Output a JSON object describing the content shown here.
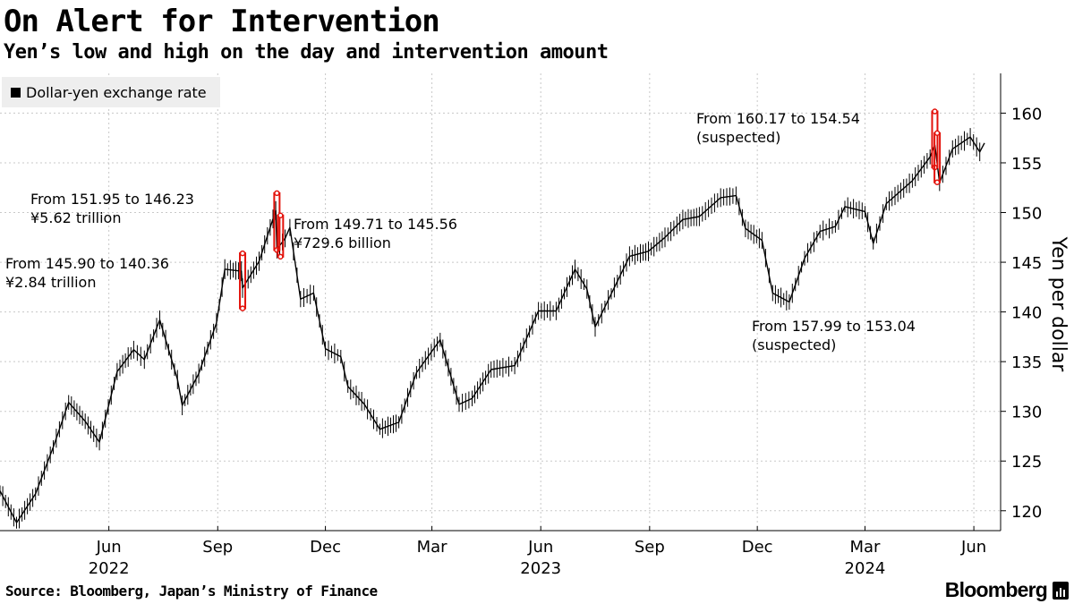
{
  "header": {
    "title": "On Alert for Intervention",
    "subtitle": "Yen’s low and high on the day and intervention amount"
  },
  "legend": {
    "label": "Dollar-yen exchange rate"
  },
  "footer": {
    "source": "Source: Bloomberg, Japan’s Ministry of Finance",
    "brand": "Bloomberg"
  },
  "colors": {
    "series": "#000000",
    "intervention": "#e3120b",
    "grid": "#c8c8c8"
  },
  "chart_data": {
    "type": "line",
    "title": "On Alert for Intervention",
    "subtitle": "Yen’s low and high on the day and intervention amount",
    "xlabel": "",
    "ylabel": "Yen per dollar",
    "ylim": [
      118,
      164
    ],
    "yticks": [
      120,
      125,
      130,
      135,
      140,
      145,
      150,
      155,
      160
    ],
    "xlim": [
      "2022-03-01",
      "2024-06-10"
    ],
    "xticks": [
      {
        "date": "2022-06-01",
        "label": "Jun",
        "year": "2022"
      },
      {
        "date": "2022-09-01",
        "label": "Sep",
        "year": ""
      },
      {
        "date": "2022-12-01",
        "label": "Dec",
        "year": ""
      },
      {
        "date": "2023-03-01",
        "label": "Mar",
        "year": ""
      },
      {
        "date": "2023-06-01",
        "label": "Jun",
        "year": "2023"
      },
      {
        "date": "2023-09-01",
        "label": "Sep",
        "year": ""
      },
      {
        "date": "2023-12-01",
        "label": "Dec",
        "year": ""
      },
      {
        "date": "2024-03-01",
        "label": "Mar",
        "year": "2024"
      },
      {
        "date": "2024-06-01",
        "label": "Jun",
        "year": ""
      }
    ],
    "series": [
      {
        "name": "Dollar-yen exchange rate",
        "points": [
          [
            "2022-03-01",
            122.0
          ],
          [
            "2022-03-15",
            118.8
          ],
          [
            "2022-03-31",
            121.7
          ],
          [
            "2022-04-15",
            126.4
          ],
          [
            "2022-04-28",
            130.9
          ],
          [
            "2022-05-12",
            129.0
          ],
          [
            "2022-05-24",
            126.9
          ],
          [
            "2022-06-08",
            134.0
          ],
          [
            "2022-06-22",
            136.2
          ],
          [
            "2022-07-01",
            135.2
          ],
          [
            "2022-07-14",
            139.2
          ],
          [
            "2022-07-29",
            133.2
          ],
          [
            "2022-08-02",
            130.6
          ],
          [
            "2022-08-16",
            133.8
          ],
          [
            "2022-08-31",
            138.9
          ],
          [
            "2022-09-07",
            144.3
          ],
          [
            "2022-09-21",
            144.1
          ],
          [
            "2022-09-22",
            142.4
          ],
          [
            "2022-10-06",
            145.1
          ],
          [
            "2022-10-20",
            150.2
          ],
          [
            "2022-10-21",
            146.3
          ],
          [
            "2022-10-28",
            147.4
          ],
          [
            "2022-11-01",
            148.5
          ],
          [
            "2022-11-10",
            141.3
          ],
          [
            "2022-11-21",
            141.9
          ],
          [
            "2022-12-01",
            136.3
          ],
          [
            "2022-12-14",
            135.5
          ],
          [
            "2022-12-20",
            132.5
          ],
          [
            "2023-01-03",
            130.7
          ],
          [
            "2023-01-16",
            128.2
          ],
          [
            "2023-02-01",
            128.9
          ],
          [
            "2023-02-16",
            133.9
          ],
          [
            "2023-03-08",
            137.2
          ],
          [
            "2023-03-24",
            130.7
          ],
          [
            "2023-04-04",
            131.3
          ],
          [
            "2023-04-20",
            134.2
          ],
          [
            "2023-05-10",
            134.6
          ],
          [
            "2023-05-30",
            140.1
          ],
          [
            "2023-06-14",
            140.1
          ],
          [
            "2023-06-30",
            144.3
          ],
          [
            "2023-07-10",
            142.3
          ],
          [
            "2023-07-17",
            138.5
          ],
          [
            "2023-07-28",
            141.2
          ],
          [
            "2023-08-15",
            145.6
          ],
          [
            "2023-08-31",
            146.1
          ],
          [
            "2023-09-14",
            147.5
          ],
          [
            "2023-09-29",
            149.3
          ],
          [
            "2023-10-13",
            149.6
          ],
          [
            "2023-10-31",
            151.5
          ],
          [
            "2023-11-13",
            151.7
          ],
          [
            "2023-11-21",
            148.4
          ],
          [
            "2023-12-05",
            147.2
          ],
          [
            "2023-12-14",
            141.9
          ],
          [
            "2023-12-28",
            141.0
          ],
          [
            "2024-01-10",
            145.4
          ],
          [
            "2024-01-23",
            148.1
          ],
          [
            "2024-02-05",
            148.6
          ],
          [
            "2024-02-13",
            150.6
          ],
          [
            "2024-03-01",
            150.1
          ],
          [
            "2024-03-08",
            146.9
          ],
          [
            "2024-03-19",
            150.9
          ],
          [
            "2024-04-10",
            153.2
          ],
          [
            "2024-04-25",
            155.6
          ],
          [
            "2024-04-29",
            156.8
          ],
          [
            "2024-05-03",
            153.0
          ],
          [
            "2024-05-14",
            156.4
          ],
          [
            "2024-05-29",
            157.6
          ],
          [
            "2024-06-06",
            156.1
          ],
          [
            "2024-06-10",
            157.0
          ]
        ]
      }
    ],
    "interventions": [
      {
        "date": "2022-09-22",
        "high": 145.9,
        "low": 140.36,
        "label_line1": "From 145.90 to 140.36",
        "label_line2": "¥2.84 trillion"
      },
      {
        "date": "2022-10-21",
        "high": 151.95,
        "low": 146.23,
        "label_line1": "From 151.95 to 146.23",
        "label_line2": "¥5.62 trillion"
      },
      {
        "date": "2022-10-24",
        "high": 149.71,
        "low": 145.56,
        "label_line1": "From 149.71 to 145.56",
        "label_line2": "¥729.6 billion"
      },
      {
        "date": "2024-04-29",
        "high": 160.17,
        "low": 154.54,
        "label_line1": "From 160.17 to 154.54",
        "label_line2": "(suspected)"
      },
      {
        "date": "2024-05-01",
        "high": 157.99,
        "low": 153.04,
        "label_line1": "From 157.99 to 153.04",
        "label_line2": "(suspected)"
      }
    ]
  }
}
